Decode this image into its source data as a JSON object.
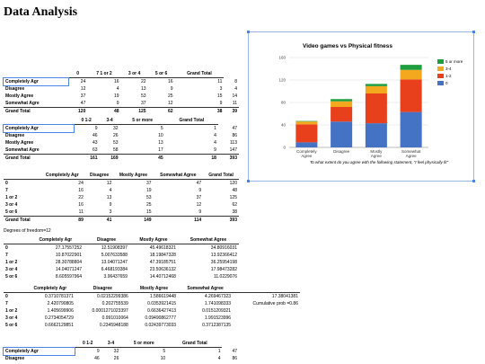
{
  "page_title": "Data Analysis",
  "table1": {
    "headers": [
      "",
      "0",
      "7  1 or 2",
      "3 or 4",
      "5 or 6",
      "Grand Total"
    ],
    "rows": [
      [
        "Completely Agr",
        "24",
        "16",
        "22",
        "16",
        "11",
        "8"
      ],
      [
        "Disagree",
        "12",
        "4",
        "13",
        "9",
        "3",
        "4"
      ],
      [
        "Mostly Agree",
        "37",
        "19",
        "53",
        "25",
        "15",
        "14"
      ],
      [
        "Somewhat Agre",
        "47",
        "9",
        "37",
        "12",
        "9",
        "11"
      ],
      [
        "Grand Total",
        "120",
        "48",
        "125",
        "62",
        "38",
        "39"
      ]
    ]
  },
  "table2": {
    "headers": [
      "",
      "0  1-2",
      "3-4",
      "5 or more",
      "Grand Total"
    ],
    "rows": [
      [
        "Completely Agr",
        "9",
        "32",
        "5",
        "1",
        "47"
      ],
      [
        "Disagree",
        "46",
        "26",
        "10",
        "4",
        "86"
      ],
      [
        "Mostly Agree",
        "43",
        "53",
        "13",
        "4",
        "113"
      ],
      [
        "Somewhat Agre",
        "63",
        "58",
        "17",
        "9",
        "147"
      ],
      [
        "Grand Total",
        "161",
        "169",
        "45",
        "18",
        "393"
      ]
    ]
  },
  "table3": {
    "headers": [
      "",
      "Completely Agr",
      "Disagree",
      "Mostly Agree",
      "Somewhat Agree",
      "Grand Total"
    ],
    "rows": [
      [
        "0",
        "24",
        "12",
        "37",
        "47",
        "120"
      ],
      [
        "7",
        "16",
        "4",
        "19",
        "9",
        "48"
      ],
      [
        "1 or 2",
        "22",
        "13",
        "53",
        "37",
        "125"
      ],
      [
        "3 or 4",
        "16",
        "9",
        "25",
        "12",
        "62"
      ],
      [
        "5 or 6",
        "11",
        "3",
        "15",
        "9",
        "38"
      ],
      [
        "Grand Total",
        "89",
        "41",
        "149",
        "114",
        "393"
      ]
    ]
  },
  "dof_label": "Degrees of freedom=12",
  "table4": {
    "headers": [
      "",
      "Completely Agr",
      "Disagree",
      "Mostly Agree",
      "Somewhat Agree"
    ],
    "rows": [
      [
        "0",
        "27.17557252",
        "12.51908397",
        "45.49618321",
        "34.80916031"
      ],
      [
        "7",
        "10.87022901",
        "5.007633588",
        "18.19847328",
        "13.92366412"
      ],
      [
        "1 or 2",
        "28.30788804",
        "13.04071247",
        "47.39185751",
        "36.25954198"
      ],
      [
        "3 or 4",
        "14.04071247",
        "6.468193384",
        "23.50636132",
        "17.98473282"
      ],
      [
        "5 or 6",
        "8.605597964",
        "3.96437659",
        "14.40712468",
        "11.0229076"
      ]
    ]
  },
  "table5": {
    "headers": [
      "",
      "Completely Agr",
      "Disagree",
      "Mostly Agree",
      "Somewhat Agree",
      ""
    ],
    "rows": [
      [
        "0",
        "0.3710781371",
        "0.02152299386",
        "1.586619448",
        "4.269467323",
        "17.38041381"
      ],
      [
        "7",
        "2.420790805",
        "0.202755539",
        "0.0353921415",
        "1.741098333",
        "Cumulative prob =0.86"
      ],
      [
        "1 or 2",
        "1.405699906",
        "0.0001271023397",
        "0.6636427413",
        "0.0151209321",
        ""
      ],
      [
        "3 or 4",
        "0.2734054729",
        "0.991010064",
        "0.09490862777",
        "1.991523996",
        ""
      ],
      [
        "5 or 6",
        "0.6662129851",
        "0.2345948188",
        "0.02439773033",
        "0.3712387135",
        ""
      ]
    ]
  },
  "table6": {
    "headers": [
      "",
      "0  1-2",
      "3-4",
      "5 or more",
      "Grand Total"
    ],
    "rows": [
      [
        "Completely Agr",
        "9",
        "32",
        "5",
        "1",
        "47"
      ],
      [
        "Disagree",
        "46",
        "26",
        "10",
        "4",
        "86"
      ]
    ]
  },
  "chart_data": {
    "type": "bar",
    "stacked": true,
    "title": "Video games vs Physical fitness",
    "caption": "To what extent do you agree with the following statement, \"I feel physically fit\"",
    "categories": [
      "Completely Agree",
      "Disagree",
      "Mostly Agree",
      "Somewhat Agree"
    ],
    "series": [
      {
        "name": "0",
        "color": "#4472c4",
        "values": [
          9,
          46,
          43,
          63
        ]
      },
      {
        "name": "1-2",
        "color": "#e8401c",
        "values": [
          32,
          26,
          53,
          58
        ]
      },
      {
        "name": "3-4",
        "color": "#f4a81d",
        "values": [
          5,
          10,
          13,
          17
        ]
      },
      {
        "name": "5 or more",
        "color": "#1e9e3e",
        "values": [
          1,
          4,
          4,
          9
        ]
      }
    ],
    "ylim": [
      0,
      160
    ],
    "yticks": [
      0,
      40,
      80,
      120,
      160
    ],
    "grid": true,
    "legend_position": "right"
  }
}
